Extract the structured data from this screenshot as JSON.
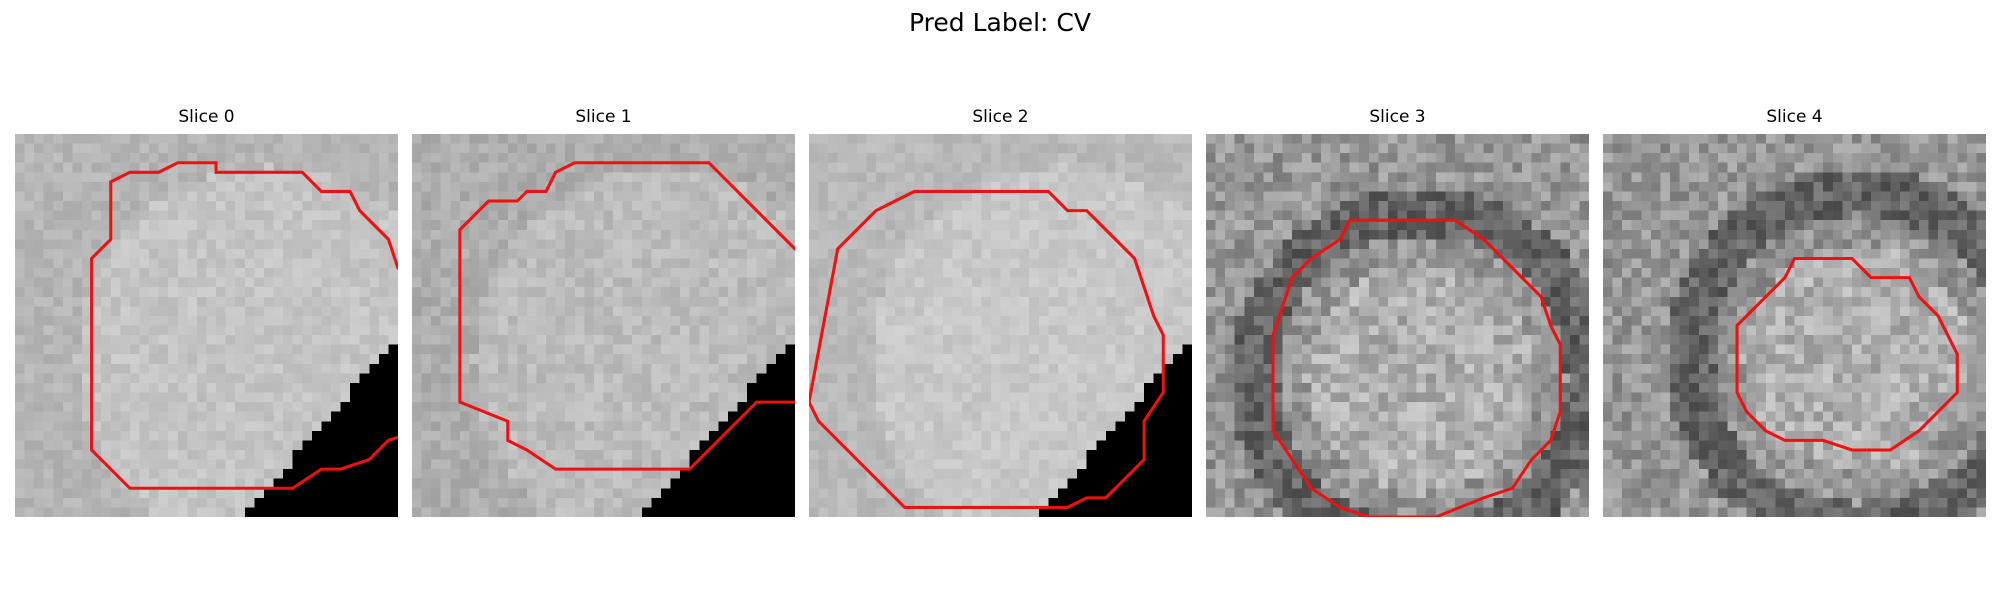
{
  "figure": {
    "title": "Pred Label: CV"
  },
  "panels": [
    {
      "title": "Slice 0",
      "base": 196,
      "contrast": 22,
      "occlusion": true,
      "contour": [
        [
          21,
          4
        ],
        [
          30,
          4
        ],
        [
          32,
          6
        ],
        [
          35,
          6
        ],
        [
          36,
          8
        ],
        [
          39,
          11
        ],
        [
          40,
          14
        ],
        [
          42,
          16
        ],
        [
          42,
          20
        ],
        [
          44,
          22
        ],
        [
          44,
          29
        ],
        [
          42,
          31
        ],
        [
          39,
          32
        ],
        [
          37,
          34
        ],
        [
          34,
          35
        ],
        [
          32,
          35
        ],
        [
          29,
          37
        ],
        [
          12,
          37
        ],
        [
          8,
          33
        ],
        [
          8,
          13
        ],
        [
          10,
          11
        ],
        [
          10,
          5
        ],
        [
          12,
          4
        ],
        [
          15,
          4
        ],
        [
          17,
          3
        ],
        [
          21,
          3
        ]
      ]
    },
    {
      "title": "Slice 1",
      "base": 188,
      "contrast": 26,
      "occlusion": true,
      "contour": [
        [
          17,
          3
        ],
        [
          31,
          3
        ],
        [
          46,
          18
        ],
        [
          46,
          25
        ],
        [
          43,
          28
        ],
        [
          36,
          28
        ],
        [
          29,
          35
        ],
        [
          15,
          35
        ],
        [
          12,
          33
        ],
        [
          10,
          32
        ],
        [
          10,
          30
        ],
        [
          5,
          28
        ],
        [
          5,
          10
        ],
        [
          8,
          7
        ],
        [
          11,
          7
        ],
        [
          12,
          6
        ],
        [
          14,
          6
        ],
        [
          15,
          4
        ]
      ]
    },
    {
      "title": "Slice 2",
      "base": 200,
      "contrast": 20,
      "occlusion": true,
      "contour": [
        [
          14,
          6
        ],
        [
          25,
          6
        ],
        [
          27,
          8
        ],
        [
          29,
          8
        ],
        [
          31,
          10
        ],
        [
          34,
          13
        ],
        [
          35,
          16
        ],
        [
          36,
          19
        ],
        [
          37,
          21
        ],
        [
          37,
          27
        ],
        [
          35,
          30
        ],
        [
          35,
          34
        ],
        [
          31,
          38
        ],
        [
          29,
          38
        ],
        [
          27,
          39
        ],
        [
          10,
          39
        ],
        [
          1,
          30
        ],
        [
          0,
          28
        ],
        [
          3,
          12
        ],
        [
          5,
          10
        ],
        [
          7,
          8
        ],
        [
          9,
          7
        ],
        [
          11,
          6
        ]
      ]
    },
    {
      "title": "Slice 3",
      "base": 150,
      "contrast": 60,
      "occlusion": false,
      "contour": [
        [
          15,
          9
        ],
        [
          26,
          9
        ],
        [
          29,
          11
        ],
        [
          31,
          13
        ],
        [
          33,
          15
        ],
        [
          35,
          17
        ],
        [
          36,
          20
        ],
        [
          37,
          22
        ],
        [
          37,
          29
        ],
        [
          36,
          32
        ],
        [
          34,
          34
        ],
        [
          32,
          37
        ],
        [
          29,
          38
        ],
        [
          24,
          40
        ],
        [
          17,
          40
        ],
        [
          14,
          39
        ],
        [
          11,
          37
        ],
        [
          9,
          34
        ],
        [
          7,
          31
        ],
        [
          7,
          21
        ],
        [
          8,
          18
        ],
        [
          9,
          15
        ],
        [
          11,
          13
        ],
        [
          14,
          11
        ]
      ]
    },
    {
      "title": "Slice 4",
      "base": 150,
      "contrast": 58,
      "occlusion": false,
      "contour": [
        [
          20,
          13
        ],
        [
          26,
          13
        ],
        [
          28,
          15
        ],
        [
          32,
          15
        ],
        [
          33,
          17
        ],
        [
          35,
          19
        ],
        [
          36,
          21
        ],
        [
          37,
          23
        ],
        [
          37,
          27
        ],
        [
          35,
          29
        ],
        [
          33,
          31
        ],
        [
          30,
          33
        ],
        [
          26,
          33
        ],
        [
          23,
          32
        ],
        [
          19,
          32
        ],
        [
          17,
          31
        ],
        [
          15,
          29
        ],
        [
          14,
          27
        ],
        [
          14,
          20
        ],
        [
          16,
          18
        ],
        [
          18,
          16
        ],
        [
          19,
          15
        ]
      ]
    }
  ]
}
